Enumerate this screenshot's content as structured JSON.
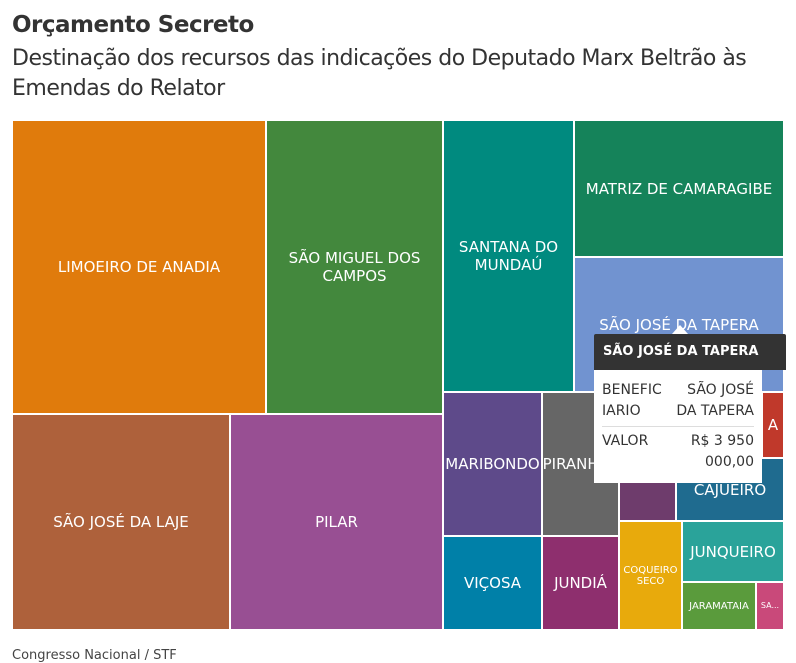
{
  "header": {
    "title": "Orçamento Secreto",
    "subtitle": "Destinação dos recursos das indicações do Deputado Marx Beltrão às Emendas do Relator"
  },
  "tiles": [
    {
      "label": "LIMOEIRO DE ANADIA",
      "color": "#e07b0c"
    },
    {
      "label": "SÃO MIGUEL DOS CAMPOS",
      "color": "#43883d"
    },
    {
      "label": "SANTANA DO MUNDAÚ",
      "color": "#008a7f"
    },
    {
      "label": "MATRIZ DE CAMARAGIBE",
      "color": "#15835a"
    },
    {
      "label": "SÃO JOSÉ DA TAPERA",
      "color": "#7193d0"
    },
    {
      "label": "SÃO JOSÉ DA LAJE",
      "color": "#ae613b"
    },
    {
      "label": "PILAR",
      "color": "#984f93"
    },
    {
      "label": "MARIBONDO",
      "color": "#5e4a8a"
    },
    {
      "label": "PIRANHAS",
      "color": "#666666"
    },
    {
      "label": "A",
      "color": "#c0392b"
    },
    {
      "label": "CAJUEIRO",
      "color": "#1f6b8f"
    },
    {
      "label": "VIÇOSA",
      "color": "#0080a8"
    },
    {
      "label": "JUNDIÁ",
      "color": "#8e2f6e"
    },
    {
      "label": "COQUEIRO SECO",
      "color": "#e8aa0c"
    },
    {
      "label": "JUNQUEIRO",
      "color": "#2aa39a"
    },
    {
      "label": "JARAMATAIA",
      "color": "#5a9b3c"
    },
    {
      "label": "SA...",
      "color": "#c9497a"
    }
  ],
  "tooltip": {
    "title": "SÃO JOSÉ DA TAPERA",
    "rows": [
      [
        "BENEFICIARIO",
        "SÃO JOSÉ DA TAPERA"
      ],
      [
        "VALOR",
        "R$ 3 950 000,00"
      ]
    ]
  },
  "source": "Congresso Nacional / STF"
}
